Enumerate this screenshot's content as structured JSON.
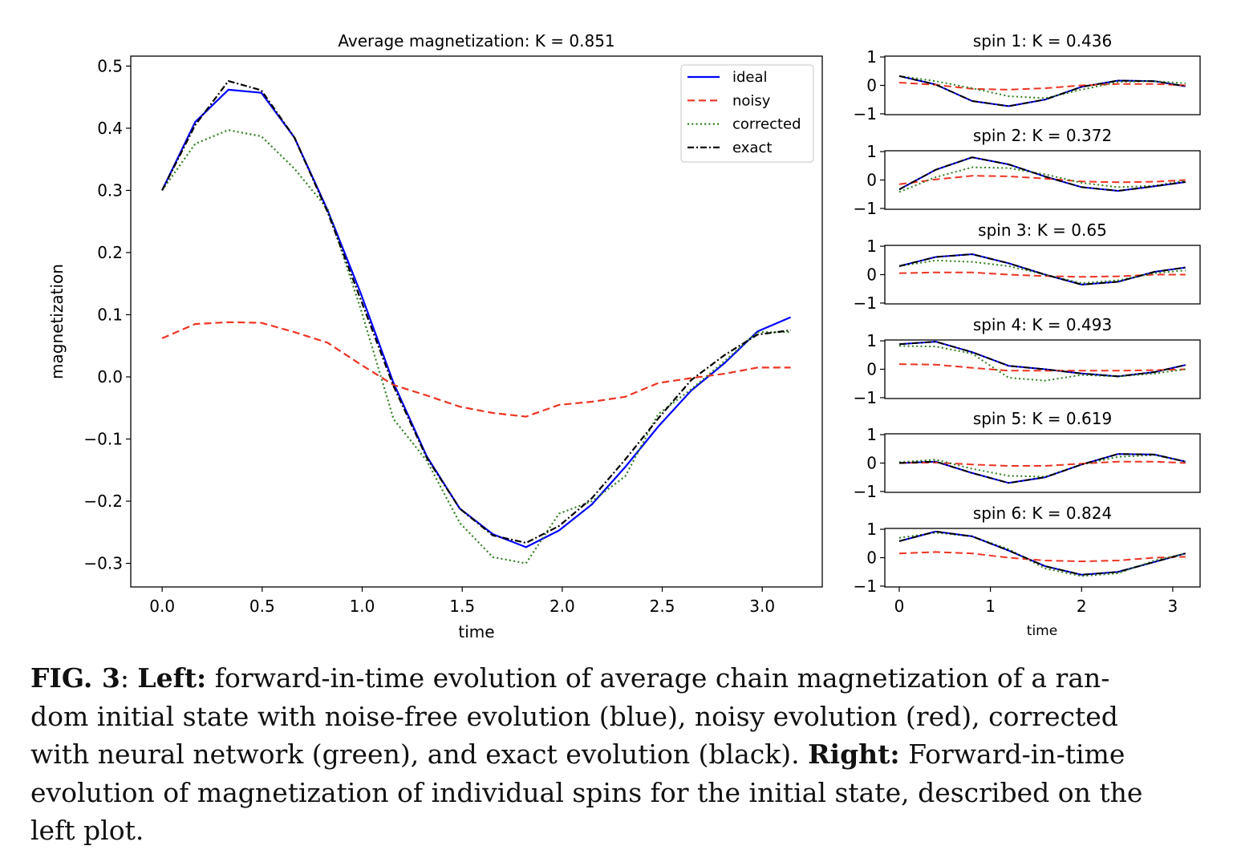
{
  "figure": {
    "main": {
      "title": "Average magnetization: K = 0.851",
      "xlabel": "time",
      "ylabel": "magnetization"
    },
    "sub_xlabel": "time"
  },
  "chart_data": [
    {
      "type": "line",
      "title": "Average magnetization: K = 0.851",
      "xlabel": "time",
      "ylabel": "magnetization",
      "xlim": [
        -0.157,
        3.3
      ],
      "ylim": [
        -0.338,
        0.516
      ],
      "xticks": [
        0.0,
        0.5,
        1.0,
        1.5,
        2.0,
        2.5,
        3.0
      ],
      "xtick_labels": [
        "0.0",
        "0.5",
        "1.0",
        "1.5",
        "2.0",
        "2.5",
        "3.0"
      ],
      "yticks": [
        -0.3,
        -0.2,
        -0.1,
        0.0,
        0.1,
        0.2,
        0.3,
        0.4,
        0.5
      ],
      "ytick_labels": [
        "−0.3",
        "−0.2",
        "−0.1",
        "0.0",
        "0.1",
        "0.2",
        "0.3",
        "0.4",
        "0.5"
      ],
      "grid": false,
      "legend": "top-right",
      "x": [
        0.0,
        0.165,
        0.331,
        0.496,
        0.661,
        0.827,
        0.992,
        1.157,
        1.323,
        1.488,
        1.653,
        1.819,
        1.984,
        2.149,
        2.315,
        2.48,
        2.645,
        2.811,
        2.976,
        3.142
      ],
      "series": [
        {
          "name": "ideal",
          "color": "#0000ff",
          "style": "solid",
          "values": [
            0.3,
            0.41,
            0.462,
            0.457,
            0.385,
            0.268,
            0.135,
            -0.01,
            -0.128,
            -0.212,
            -0.253,
            -0.274,
            -0.247,
            -0.205,
            -0.145,
            -0.08,
            -0.022,
            0.022,
            0.073,
            0.096
          ]
        },
        {
          "name": "noisy",
          "color": "#ee3322",
          "style": "dashed",
          "values": [
            0.062,
            0.085,
            0.088,
            0.087,
            0.072,
            0.055,
            0.02,
            -0.013,
            -0.03,
            -0.048,
            -0.058,
            -0.064,
            -0.045,
            -0.04,
            -0.032,
            -0.01,
            -0.002,
            0.005,
            0.015,
            0.015
          ]
        },
        {
          "name": "corrected",
          "color": "#2e7d1e",
          "style": "dotted",
          "values": [
            0.3,
            0.375,
            0.397,
            0.387,
            0.335,
            0.27,
            0.11,
            -0.068,
            -0.135,
            -0.235,
            -0.29,
            -0.3,
            -0.22,
            -0.2,
            -0.16,
            -0.06,
            -0.02,
            0.025,
            0.072,
            0.072
          ]
        },
        {
          "name": "exact",
          "color": "#000000",
          "style": "dashdot",
          "values": [
            0.3,
            0.405,
            0.476,
            0.461,
            0.385,
            0.265,
            0.125,
            -0.015,
            -0.13,
            -0.212,
            -0.255,
            -0.267,
            -0.24,
            -0.195,
            -0.133,
            -0.067,
            -0.005,
            0.035,
            0.068,
            0.075
          ]
        }
      ]
    },
    {
      "type": "line",
      "title": "spin 1: K = 0.436",
      "xlim": [
        -0.158,
        3.3
      ],
      "ylim": [
        -1.03,
        1.03
      ],
      "yticks": [
        -1,
        0,
        1
      ],
      "ytick_labels": [
        "−1",
        "0",
        "1"
      ],
      "x": [
        0,
        0.4,
        0.8,
        1.2,
        1.6,
        2.0,
        2.4,
        2.8,
        3.14
      ],
      "series": [
        {
          "name": "ideal",
          "values": [
            0.33,
            0.03,
            -0.55,
            -0.73,
            -0.5,
            -0.05,
            0.17,
            0.15,
            -0.03
          ]
        },
        {
          "name": "noisy",
          "values": [
            0.1,
            0.02,
            -0.12,
            -0.15,
            -0.1,
            0.0,
            0.05,
            0.05,
            0.0
          ]
        },
        {
          "name": "corrected",
          "values": [
            0.33,
            0.15,
            -0.1,
            -0.38,
            -0.45,
            -0.15,
            0.12,
            0.15,
            0.07
          ]
        },
        {
          "name": "exact",
          "values": [
            0.33,
            0.03,
            -0.55,
            -0.73,
            -0.5,
            -0.05,
            0.17,
            0.15,
            -0.03
          ]
        }
      ]
    },
    {
      "type": "line",
      "title": "spin 2: K = 0.372",
      "xlim": [
        -0.158,
        3.3
      ],
      "ylim": [
        -1.03,
        1.03
      ],
      "yticks": [
        -1,
        0,
        1
      ],
      "ytick_labels": [
        "−1",
        "0",
        "1"
      ],
      "x": [
        0,
        0.4,
        0.8,
        1.2,
        1.6,
        2.0,
        2.4,
        2.8,
        3.14
      ],
      "series": [
        {
          "name": "ideal",
          "values": [
            -0.33,
            0.36,
            0.8,
            0.55,
            0.12,
            -0.25,
            -0.38,
            -0.22,
            -0.07
          ]
        },
        {
          "name": "noisy",
          "values": [
            -0.15,
            0.02,
            0.15,
            0.13,
            0.05,
            -0.05,
            -0.08,
            -0.06,
            0.0
          ]
        },
        {
          "name": "corrected",
          "values": [
            -0.42,
            0.1,
            0.45,
            0.42,
            0.2,
            -0.1,
            -0.25,
            -0.2,
            -0.02
          ]
        },
        {
          "name": "exact",
          "values": [
            -0.33,
            0.36,
            0.8,
            0.55,
            0.12,
            -0.25,
            -0.38,
            -0.22,
            -0.07
          ]
        }
      ]
    },
    {
      "type": "line",
      "title": "spin 3: K = 0.65",
      "xlim": [
        -0.158,
        3.3
      ],
      "ylim": [
        -1.03,
        1.03
      ],
      "yticks": [
        -1,
        0,
        1
      ],
      "ytick_labels": [
        "−1",
        "0",
        "1"
      ],
      "x": [
        0,
        0.4,
        0.8,
        1.2,
        1.6,
        2.0,
        2.4,
        2.8,
        3.14
      ],
      "series": [
        {
          "name": "ideal",
          "values": [
            0.3,
            0.62,
            0.72,
            0.4,
            0.0,
            -0.35,
            -0.25,
            0.1,
            0.25
          ]
        },
        {
          "name": "noisy",
          "values": [
            0.05,
            0.08,
            0.08,
            0.0,
            -0.05,
            -0.08,
            -0.06,
            0.0,
            0.0
          ]
        },
        {
          "name": "corrected",
          "values": [
            0.3,
            0.5,
            0.45,
            0.3,
            0.0,
            -0.3,
            -0.2,
            0.05,
            0.15
          ]
        },
        {
          "name": "exact",
          "values": [
            0.3,
            0.62,
            0.72,
            0.4,
            0.0,
            -0.35,
            -0.25,
            0.1,
            0.25
          ]
        }
      ]
    },
    {
      "type": "line",
      "title": "spin 4: K = 0.493",
      "xlim": [
        -0.158,
        3.3
      ],
      "ylim": [
        -1.03,
        1.03
      ],
      "yticks": [
        -1,
        0,
        1
      ],
      "ytick_labels": [
        "−1",
        "0",
        "1"
      ],
      "x": [
        0,
        0.4,
        0.8,
        1.2,
        1.6,
        2.0,
        2.4,
        2.8,
        3.14
      ],
      "series": [
        {
          "name": "ideal",
          "values": [
            0.88,
            0.97,
            0.6,
            0.12,
            0.0,
            -0.15,
            -0.25,
            -0.1,
            0.15
          ]
        },
        {
          "name": "noisy",
          "values": [
            0.18,
            0.16,
            0.05,
            -0.05,
            -0.05,
            -0.05,
            -0.05,
            -0.03,
            0.0
          ]
        },
        {
          "name": "corrected",
          "values": [
            0.82,
            0.8,
            0.55,
            -0.3,
            -0.4,
            -0.2,
            -0.25,
            -0.15,
            0.0
          ]
        },
        {
          "name": "exact",
          "values": [
            0.88,
            0.97,
            0.6,
            0.12,
            0.0,
            -0.15,
            -0.25,
            -0.1,
            0.15
          ]
        }
      ]
    },
    {
      "type": "line",
      "title": "spin 5: K = 0.619",
      "xlim": [
        -0.158,
        3.3
      ],
      "ylim": [
        -1.03,
        1.03
      ],
      "yticks": [
        -1,
        0,
        1
      ],
      "ytick_labels": [
        "−1",
        "0",
        "1"
      ],
      "x": [
        0,
        0.4,
        0.8,
        1.2,
        1.6,
        2.0,
        2.4,
        2.8,
        3.14
      ],
      "series": [
        {
          "name": "ideal",
          "values": [
            0.0,
            0.05,
            -0.35,
            -0.7,
            -0.5,
            -0.05,
            0.32,
            0.3,
            0.05
          ]
        },
        {
          "name": "noisy",
          "values": [
            0.0,
            0.02,
            -0.05,
            -0.1,
            -0.1,
            -0.02,
            0.05,
            0.05,
            0.0
          ]
        },
        {
          "name": "corrected",
          "values": [
            0.03,
            0.12,
            -0.2,
            -0.45,
            -0.48,
            -0.05,
            0.22,
            0.28,
            0.05
          ]
        },
        {
          "name": "exact",
          "values": [
            0.0,
            0.05,
            -0.35,
            -0.7,
            -0.5,
            -0.05,
            0.32,
            0.3,
            0.05
          ]
        }
      ]
    },
    {
      "type": "line",
      "title": "spin 6: K = 0.824",
      "xlabel": "time",
      "xlim": [
        -0.158,
        3.3
      ],
      "ylim": [
        -1.03,
        1.03
      ],
      "yticks": [
        -1,
        0,
        1
      ],
      "ytick_labels": [
        "−1",
        "0",
        "1"
      ],
      "xticks": [
        0,
        1,
        2,
        3
      ],
      "xtick_labels": [
        "0",
        "1",
        "2",
        "3"
      ],
      "x": [
        0,
        0.4,
        0.8,
        1.2,
        1.6,
        2.0,
        2.4,
        2.8,
        3.14
      ],
      "series": [
        {
          "name": "ideal",
          "values": [
            0.58,
            0.92,
            0.75,
            0.25,
            -0.3,
            -0.6,
            -0.5,
            -0.15,
            0.15
          ]
        },
        {
          "name": "noisy",
          "values": [
            0.15,
            0.2,
            0.15,
            0.0,
            -0.1,
            -0.13,
            -0.1,
            0.0,
            0.03
          ]
        },
        {
          "name": "corrected",
          "values": [
            0.7,
            0.88,
            0.75,
            0.3,
            -0.38,
            -0.65,
            -0.55,
            -0.1,
            0.15
          ]
        },
        {
          "name": "exact",
          "values": [
            0.58,
            0.92,
            0.75,
            0.25,
            -0.3,
            -0.6,
            -0.5,
            -0.15,
            0.15
          ]
        }
      ]
    }
  ],
  "caption": {
    "fig_label": "FIG. 3",
    "line1_sep": ": ",
    "left_label": "Left:",
    "line1": " forward-in-time evolution of average chain magnetization of a ran-",
    "line2": "dom initial state with noise-free evolution (blue), noisy evolution (red), corrected",
    "line3": "with neural network (green), and exact evolution (black). ",
    "right_label": "Right:",
    "line3_end": " Forward-in-time",
    "line4": "evolution of magnetization of individual spins for the initial state, described on the",
    "line5": "left plot."
  }
}
